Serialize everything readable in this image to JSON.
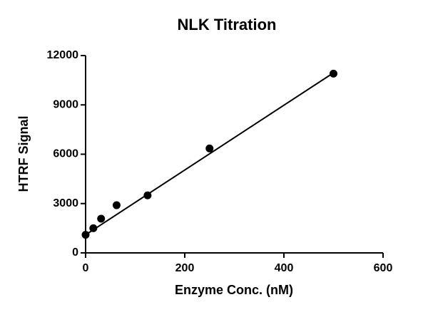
{
  "chart_data": {
    "type": "scatter",
    "title": "NLK Titration",
    "x_label": "Enzyme Conc. (nM)",
    "y_label": "HTRF Signal",
    "x": [
      0,
      15.6,
      31.25,
      62.5,
      125,
      250,
      500
    ],
    "values": [
      1100,
      1500,
      2080,
      2900,
      3500,
      6350,
      10900
    ],
    "color": "#000000",
    "fit_line": {
      "x": [
        0,
        500
      ],
      "values": [
        1100,
        10950
      ]
    },
    "xlim": [
      0,
      600
    ],
    "xticks": [
      0,
      200,
      400,
      600
    ],
    "ylim": [
      0,
      12000
    ],
    "yticks": [
      0,
      3000,
      6000,
      9000,
      12000
    ]
  }
}
